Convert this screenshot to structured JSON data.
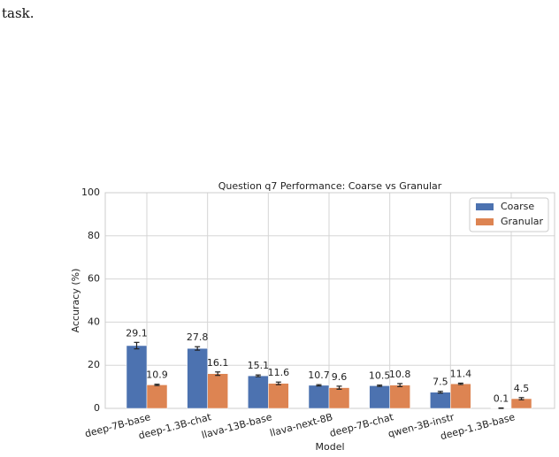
{
  "page_text": "task.",
  "chart_data": {
    "type": "bar",
    "title": "Question q7 Performance: Coarse vs Granular",
    "x_label": "Model",
    "y_label": "Accuracy (%)",
    "categories": [
      "deep-7B-base",
      "deep-1.3B-chat",
      "llava-13B-base",
      "llava-next-8B",
      "deep-7B-chat",
      "qwen-3B-instr",
      "deep-1.3B-base"
    ],
    "series": [
      {
        "name": "Coarse",
        "color": "#4c72b0",
        "values": [
          29.1,
          27.8,
          15.1,
          10.7,
          10.5,
          7.5,
          0.1
        ],
        "errors": [
          1.5,
          0.8,
          0.4,
          0.3,
          0.3,
          0.4,
          0.1
        ]
      },
      {
        "name": "Granular",
        "color": "#dd8452",
        "values": [
          10.9,
          16.1,
          11.6,
          9.6,
          10.8,
          11.4,
          4.5
        ],
        "errors": [
          0.3,
          0.8,
          0.6,
          0.7,
          0.7,
          0.3,
          0.5
        ]
      }
    ],
    "ylim": [
      0,
      100
    ],
    "yticks": [
      0,
      20,
      40,
      60,
      80,
      100
    ],
    "grid": true,
    "legend": "upper right"
  }
}
